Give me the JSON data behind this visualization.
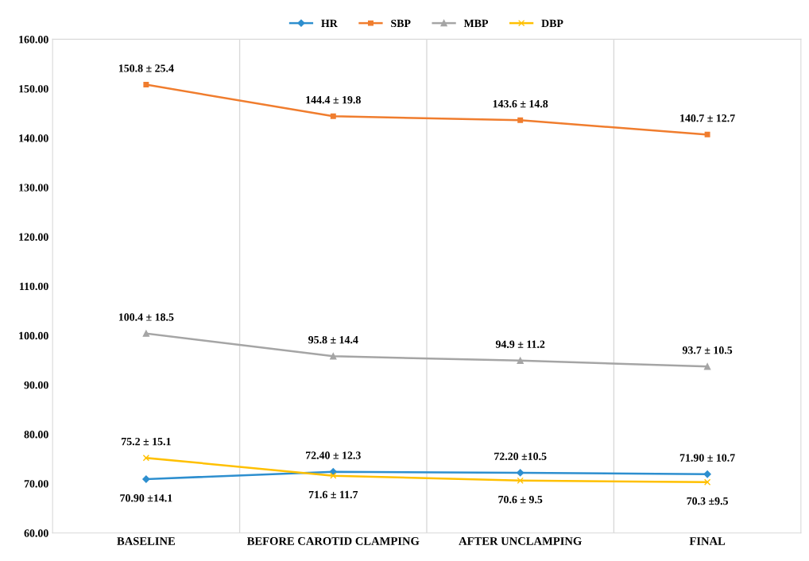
{
  "chart_data": {
    "type": "line",
    "categories": [
      "BASELINE",
      "BEFORE CAROTID CLAMPING",
      "AFTER UNCLAMPING",
      "FINAL"
    ],
    "ylim": [
      60,
      160
    ],
    "yticks": [
      {
        "value": 60,
        "label": "60.00"
      },
      {
        "value": 70,
        "label": "70.00"
      },
      {
        "value": 80,
        "label": "80.00"
      },
      {
        "value": 90,
        "label": "90.00"
      },
      {
        "value": 100,
        "label": "100.00"
      },
      {
        "value": 110,
        "label": "110.00"
      },
      {
        "value": 120,
        "label": "120.00"
      },
      {
        "value": 130,
        "label": "130.00"
      },
      {
        "value": 140,
        "label": "140.00"
      },
      {
        "value": 150,
        "label": "150.00"
      },
      {
        "value": 160,
        "label": "160.00"
      }
    ],
    "grid": "x",
    "legend": "top",
    "series": [
      {
        "name": "HR",
        "color": "#2e8fcf",
        "marker": "diamond",
        "values": [
          70.9,
          72.4,
          72.2,
          71.9
        ],
        "value_labels": [
          "70.90 ±14.1",
          "72.40 ± 12.3",
          "72.20 ±10.5",
          "71.90 ± 10.7"
        ]
      },
      {
        "name": "SBP",
        "color": "#f07d2e",
        "marker": "square",
        "values": [
          150.8,
          144.4,
          143.6,
          140.7
        ],
        "value_labels": [
          "150.8 ± 25.4",
          "144.4 ± 19.8",
          "143.6 ± 14.8",
          "140.7 ± 12.7"
        ]
      },
      {
        "name": "MBP",
        "color": "#a5a5a5",
        "marker": "triangle",
        "values": [
          100.4,
          95.8,
          94.9,
          93.7
        ],
        "value_labels": [
          "100.4 ± 18.5",
          "95.8 ± 14.4",
          "94.9 ± 11.2",
          "93.7 ± 10.5"
        ]
      },
      {
        "name": "DBP",
        "color": "#ffc000",
        "marker": "cross",
        "values": [
          75.2,
          71.6,
          70.6,
          70.3
        ],
        "value_labels": [
          "75.2 ± 15.1",
          "71.6 ± 11.7",
          "70.6 ± 9.5",
          "70.3 ±9.5"
        ]
      }
    ]
  }
}
